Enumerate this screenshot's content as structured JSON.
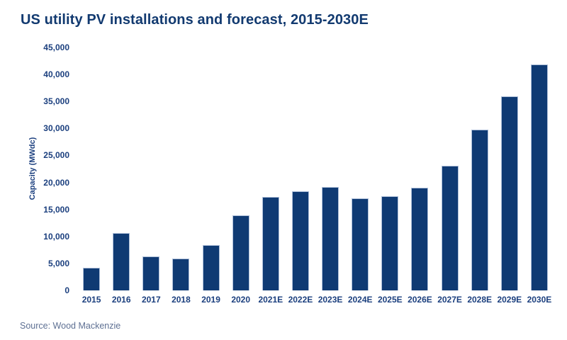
{
  "header": {
    "title": "US utility PV installations and forecast, 2015-2030E"
  },
  "footer": {
    "source": "Source: Wood Mackenzie"
  },
  "colors": {
    "bar": "#0f3a73",
    "bar_border": "#aebfd9",
    "title_text": "#123a70",
    "axis_text": "#1b3f7e",
    "source_text": "#5e7093",
    "background": "#ffffff"
  },
  "chart_data": {
    "type": "bar",
    "title": "US utility PV installations and forecast, 2015-2030E",
    "categories": [
      "2015",
      "2016",
      "2017",
      "2018",
      "2019",
      "2020",
      "2021E",
      "2022E",
      "2023E",
      "2024E",
      "2025E",
      "2026E",
      "2027E",
      "2028E",
      "2029E",
      "2030E"
    ],
    "values": [
      4200,
      10600,
      6300,
      5900,
      8400,
      13900,
      17300,
      18400,
      19200,
      17100,
      17400,
      19000,
      23100,
      29800,
      35900,
      41800
    ],
    "xlabel": "",
    "ylabel": "Capacity (MWdc)",
    "ylim": [
      0,
      45000
    ],
    "ytick_interval": 5000,
    "ytick_labels": [
      "0",
      "5,000",
      "10,000",
      "15,000",
      "20,000",
      "25,000",
      "30,000",
      "35,000",
      "40,000",
      "45,000"
    ],
    "grid": false,
    "legend": "none",
    "series_color": "#0f3a73"
  }
}
